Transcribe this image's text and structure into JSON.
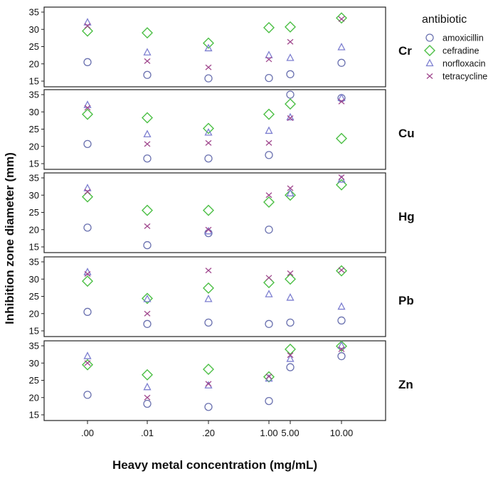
{
  "chart_data": {
    "type": "scatter",
    "xlabel": "Heavy metal concentration (mg/mL)",
    "ylabel": "Inhibition zone diameter (mm)",
    "categories": [
      ".00",
      ".01",
      ".20",
      "1.00",
      "5.00",
      "10.00"
    ],
    "ylim": [
      15,
      35
    ],
    "yticks": [
      "15",
      "20",
      "25",
      "30",
      "35"
    ],
    "grid": false,
    "legend": {
      "title": "antibiotic",
      "placement": "top-right",
      "entries": [
        "amoxicillin",
        "cefradine",
        "norfloxacin",
        "tetracycline"
      ]
    },
    "series_style": [
      {
        "marker": "circle",
        "color": "#6b72b0"
      },
      {
        "marker": "diamond",
        "color": "#4cbf45"
      },
      {
        "marker": "triangle",
        "color": "#7d7fd0"
      },
      {
        "marker": "x",
        "color": "#a0478d"
      }
    ],
    "panels": [
      {
        "metal": "Cr",
        "series": [
          {
            "values": [
              20.5,
              16.8,
              15.8,
              15.9,
              17.0,
              20.3
            ]
          },
          {
            "values": [
              29.5,
              29.0,
              26.0,
              30.5,
              30.7,
              33.3
            ]
          },
          {
            "values": [
              32.0,
              23.3,
              24.5,
              22.5,
              21.7,
              24.8
            ]
          },
          {
            "values": [
              31.0,
              20.8,
              19.0,
              21.3,
              26.4,
              33.0
            ]
          }
        ]
      },
      {
        "metal": "Cu",
        "series": [
          {
            "values": [
              20.7,
              16.5,
              16.5,
              17.5,
              35.0,
              34.0
            ]
          },
          {
            "values": [
              29.3,
              28.3,
              25.2,
              29.3,
              32.3,
              22.3
            ]
          },
          {
            "values": [
              32.0,
              23.5,
              24.0,
              24.5,
              28.4,
              34.0
            ]
          },
          {
            "values": [
              31.2,
              20.7,
              21.0,
              21.0,
              28.2,
              33.0
            ]
          }
        ]
      },
      {
        "metal": "Hg",
        "series": [
          {
            "values": [
              20.6,
              15.5,
              19.0,
              20.0,
              null,
              null
            ]
          },
          {
            "values": [
              29.5,
              25.6,
              25.6,
              28.0,
              30.0,
              33.0
            ]
          },
          {
            "values": [
              32.0,
              null,
              19.5,
              null,
              30.5,
              34.5
            ]
          },
          {
            "values": [
              31.0,
              21.0,
              20.0,
              30.0,
              32.0,
              35.2
            ]
          }
        ]
      },
      {
        "metal": "Pb",
        "series": [
          {
            "values": [
              20.5,
              17.0,
              17.4,
              17.0,
              17.4,
              18.0
            ]
          },
          {
            "values": [
              29.4,
              24.4,
              27.4,
              29.0,
              30.0,
              32.4
            ]
          },
          {
            "values": [
              32.0,
              24.2,
              24.2,
              25.6,
              24.6,
              22.0
            ]
          },
          {
            "values": [
              31.5,
              20.0,
              32.5,
              30.4,
              31.7,
              32.6
            ]
          }
        ]
      },
      {
        "metal": "Zn",
        "series": [
          {
            "values": [
              20.8,
              18.2,
              17.3,
              19.0,
              28.8,
              32.0
            ]
          },
          {
            "values": [
              29.5,
              26.6,
              28.2,
              26.0,
              34.0,
              34.9
            ]
          },
          {
            "values": [
              32.0,
              23.0,
              23.5,
              25.5,
              31.2,
              35.0
            ]
          },
          {
            "values": [
              30.0,
              20.0,
              24.0,
              26.1,
              32.3,
              34.0
            ]
          }
        ]
      }
    ]
  }
}
